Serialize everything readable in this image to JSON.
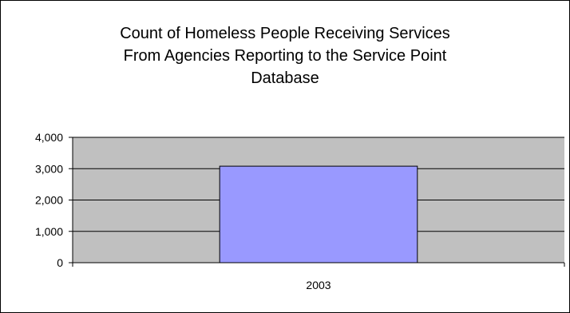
{
  "chart_data": {
    "type": "bar",
    "title_lines": [
      "Count of Homeless People Receiving Services",
      "From Agencies Reporting to the Service Point",
      "Database"
    ],
    "categories": [
      "2003"
    ],
    "values": [
      3080
    ],
    "ylim": [
      0,
      4000
    ],
    "yticks": [
      "0",
      "1,000",
      "2,000",
      "3,000",
      "4,000"
    ],
    "ytick_values": [
      0,
      1000,
      2000,
      3000,
      4000
    ],
    "grid": true,
    "legend": "none",
    "colors": {
      "plot_background": "#c0c0c0",
      "bar_fill": "#9999ff",
      "bar_stroke": "#000000",
      "grid": "#000000"
    }
  }
}
